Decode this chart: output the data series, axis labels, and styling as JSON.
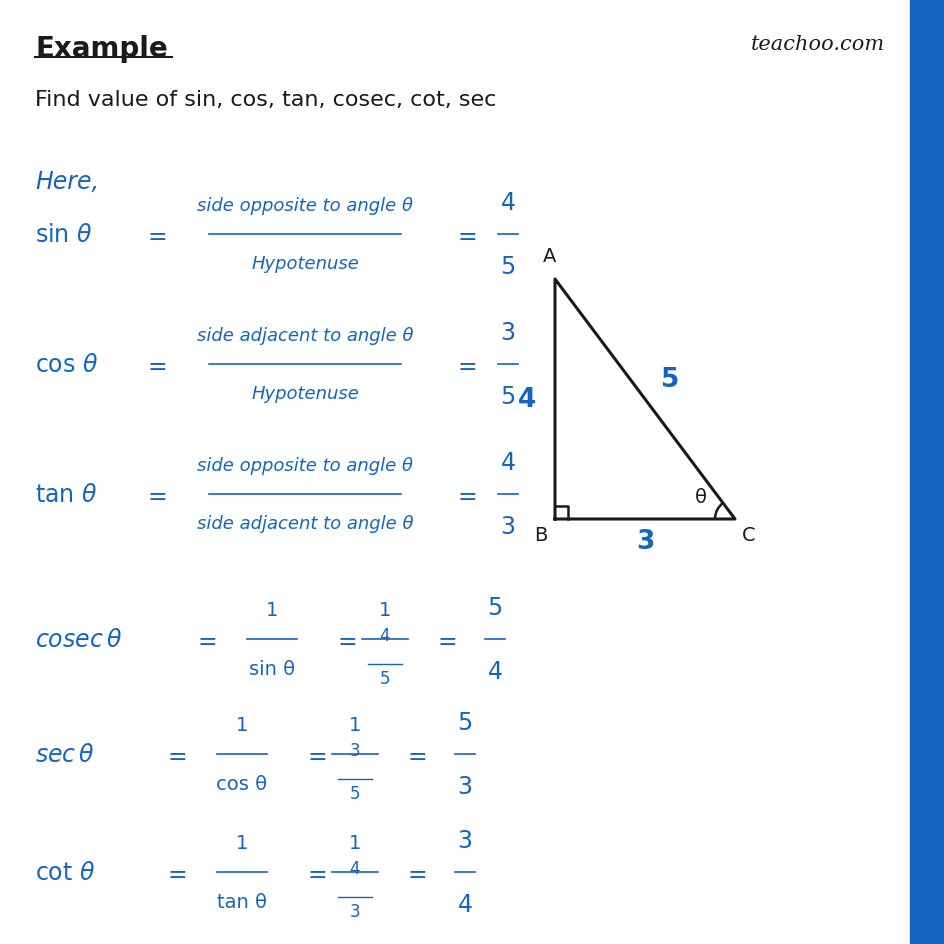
{
  "title": "Example",
  "watermark": "teachoo.com",
  "subtitle": "Find value of sin, cos, tan, cosec, cot, sec",
  "here_text": "Here,",
  "blue_color": "#1565C0",
  "dark_color": "#1a1a1a",
  "bg_color": "#ffffff",
  "sidebar_color": "#1565C0"
}
